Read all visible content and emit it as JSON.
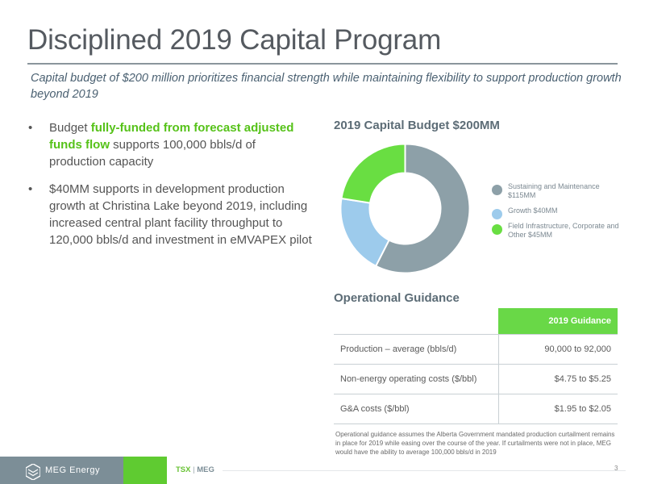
{
  "slide": {
    "title": "Disciplined 2019 Capital Program",
    "subtitle": "Capital budget of $200 million prioritizes financial strength while maintaining flexibility to support production growth beyond 2019"
  },
  "bullets": [
    {
      "bullet_char": "•",
      "pre": "Budget ",
      "highlight": "fully-funded from forecast adjusted funds flow",
      "post": " supports 100,000 bbls/d of production capacity"
    },
    {
      "bullet_char": "•",
      "text": "$40MM supports in development production growth at Christina Lake beyond 2019, including increased central plant facility throughput to 120,000 bbls/d and investment in eMVAPEX pilot"
    }
  ],
  "chart_data": {
    "type": "pie",
    "variant": "donut",
    "title": "2019 Capital Budget $200MM",
    "legend_position": "right",
    "categories": [
      "Sustaining and Maintenance $115MM",
      "Growth $40MM",
      "Field Infrastructure, Corporate and Other $45MM"
    ],
    "values": [
      115,
      40,
      45
    ],
    "colors": [
      "#8da0a8",
      "#9dcbec",
      "#69de42"
    ]
  },
  "operational_guidance": {
    "title": "Operational Guidance",
    "column_header": "2019 Guidance",
    "rows": [
      {
        "label": "Production – average (bbls/d)",
        "value": "90,000 to 92,000"
      },
      {
        "label": "Non-energy operating costs ($/bbl)",
        "value": "$4.75 to $5.25"
      },
      {
        "label": "G&A costs ($/bbl)",
        "value": "$1.95 to $2.05"
      }
    ],
    "footnote": "Operational guidance assumes the Alberta Government mandated production curtailment remains in place for 2019 while easing over the course of the year. If curtailments were not in place, MEG would have the ability to average 100,000 bbls/d in 2019"
  },
  "footer": {
    "logo_text": "MEG Energy",
    "ticker_exchange": "TSX",
    "ticker_sep": "|",
    "ticker_symbol": "MEG",
    "page_number": "3"
  },
  "colors": {
    "accent_green": "#5fcb31",
    "footer_grey": "#7c8e97",
    "title_grey": "#555a60"
  }
}
